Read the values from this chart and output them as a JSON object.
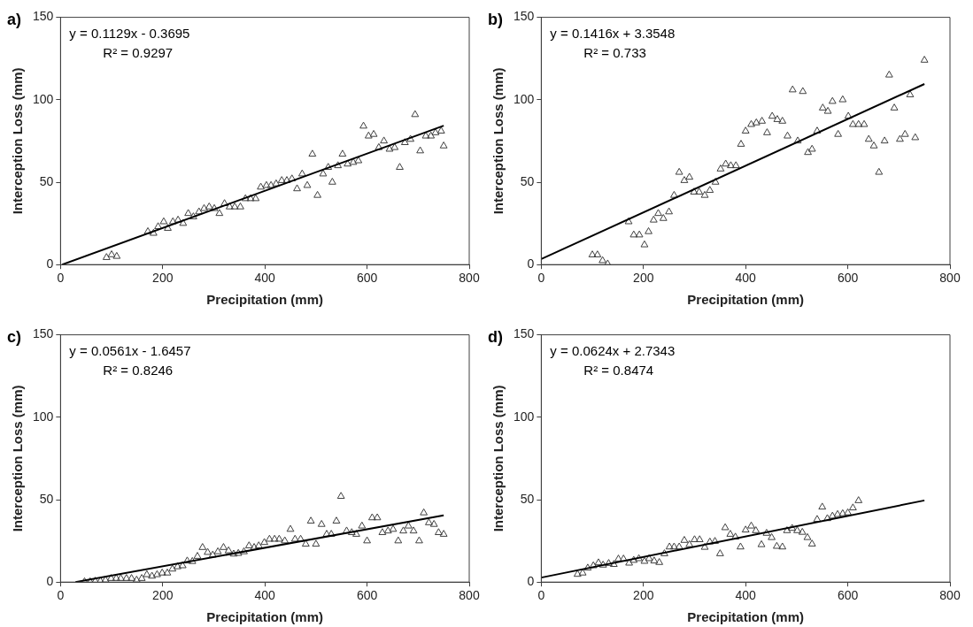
{
  "chart_data": [
    {
      "type": "scatter",
      "title": "a)",
      "xlabel": "Precipitation (mm)",
      "ylabel": "Interception Loss (mm)",
      "annotations": [
        "y = 0.1129x - 0.3695",
        "R² = 0.9297"
      ],
      "xlim": [
        0,
        800
      ],
      "xticks": [
        0,
        200,
        400,
        600,
        800
      ],
      "ylim": [
        0,
        150
      ],
      "yticks": [
        0,
        50,
        100,
        150
      ],
      "marker": "triangle",
      "legend": false,
      "series": [
        {
          "color": "#404040",
          "x": [
            90,
            100,
            110,
            171,
            182,
            191,
            202,
            210,
            220,
            230,
            240,
            250,
            260,
            271,
            281,
            291,
            301,
            311,
            321,
            331,
            341,
            352,
            362,
            372,
            382,
            392,
            403,
            412,
            422,
            433,
            443,
            453,
            463,
            473,
            483,
            493,
            503,
            514,
            524,
            532,
            543,
            552,
            562,
            573,
            583,
            593,
            603,
            613,
            623,
            633,
            644,
            654,
            664,
            674,
            685,
            694,
            704,
            715,
            725,
            734,
            745,
            750
          ],
          "values": [
            4.3,
            6,
            5,
            20,
            19,
            23,
            26,
            22,
            26,
            27,
            25,
            31,
            29,
            32,
            34,
            35,
            34,
            31,
            37,
            35,
            35,
            35,
            40,
            40,
            40,
            47,
            48,
            48,
            49,
            51,
            51,
            52,
            46,
            55,
            48,
            67,
            42,
            55,
            59,
            50,
            60,
            67,
            61,
            62,
            63,
            84,
            78,
            79,
            71,
            75,
            70,
            71,
            59,
            74,
            76,
            91,
            69,
            78,
            78,
            80,
            81,
            72
          ]
        },
        {
          "type": "line",
          "color": "#000000",
          "marker": "none",
          "x": [
            3.3,
            750
          ],
          "values": [
            0,
            84.3
          ]
        }
      ]
    },
    {
      "type": "scatter",
      "title": "b)",
      "xlabel": "Precipitation (mm)",
      "ylabel": "Interception Loss (mm)",
      "annotations": [
        "y = 0.1416x + 3.3548",
        "R² = 0.733"
      ],
      "xlim": [
        0,
        800
      ],
      "xticks": [
        0,
        200,
        400,
        600,
        800
      ],
      "ylim": [
        0,
        150
      ],
      "yticks": [
        0,
        50,
        100,
        150
      ],
      "marker": "triangle",
      "legend": false,
      "series": [
        {
          "color": "#404040",
          "x": [
            100,
            110,
            120,
            130,
            171,
            181,
            192,
            202,
            210,
            220,
            229,
            239,
            250,
            260,
            270,
            280,
            290,
            299,
            309,
            320,
            330,
            341,
            351,
            361,
            371,
            381,
            391,
            400,
            411,
            421,
            432,
            442,
            452,
            462,
            472,
            482,
            492,
            502,
            512,
            522,
            530,
            540,
            551,
            561,
            570,
            581,
            590,
            601,
            610,
            621,
            632,
            641,
            651,
            661,
            672,
            681,
            691,
            702,
            712,
            722,
            732,
            750
          ],
          "values": [
            5.9,
            5.9,
            2.4,
            0.4,
            26,
            18,
            18,
            12,
            20,
            27,
            31,
            28,
            32,
            42,
            56,
            51,
            53,
            44,
            44,
            42,
            45,
            50,
            58,
            61,
            60,
            60,
            73,
            81,
            85,
            86,
            87,
            80,
            90,
            88,
            87,
            78,
            106,
            75,
            105,
            68,
            70,
            81,
            95,
            93,
            99,
            79,
            100,
            90,
            85,
            85,
            85,
            76,
            72,
            56,
            75,
            115,
            95,
            76,
            79,
            103,
            77,
            124
          ]
        },
        {
          "type": "line",
          "color": "#000000",
          "marker": "none",
          "x": [
            0,
            750
          ],
          "values": [
            3.35,
            109.55
          ]
        }
      ]
    },
    {
      "type": "scatter",
      "title": "c)",
      "xlabel": "Precipitation (mm)",
      "ylabel": "Interception Loss (mm)",
      "annotations": [
        "y = 0.0561x - 1.6457",
        "R² = 0.8246"
      ],
      "xlim": [
        0,
        800
      ],
      "xticks": [
        0,
        200,
        400,
        600,
        800
      ],
      "ylim": [
        0,
        150
      ],
      "yticks": [
        0,
        50,
        100,
        150
      ],
      "marker": "triangle",
      "legend": false,
      "series": [
        {
          "color": "#404040",
          "x": [
            47,
            58,
            68,
            78,
            88,
            99,
            109,
            118,
            129,
            139,
            149,
            159,
            169,
            179,
            189,
            199,
            209,
            219,
            229,
            239,
            248,
            258,
            268,
            278,
            288,
            298,
            308,
            319,
            329,
            339,
            348,
            359,
            369,
            379,
            388,
            399,
            409,
            419,
            428,
            439,
            450,
            459,
            470,
            480,
            490,
            500,
            511,
            521,
            530,
            540,
            549,
            560,
            570,
            579,
            590,
            600,
            610,
            620,
            630,
            641,
            651,
            661,
            671,
            681,
            691,
            702,
            711,
            721,
            731,
            740,
            750
          ],
          "values": [
            0.2,
            0.2,
            0.6,
            0.6,
            1.2,
            2.2,
            2.2,
            2.2,
            2.2,
            2.2,
            1.2,
            2.2,
            4.5,
            3.6,
            4.5,
            5.5,
            5.5,
            7.9,
            9.3,
            9.9,
            12.8,
            12.5,
            15.6,
            21,
            18,
            16.4,
            18.4,
            21,
            19,
            17,
            17.4,
            18.4,
            22,
            21,
            22,
            24,
            26,
            26,
            26,
            25,
            32,
            26,
            26,
            23,
            37,
            23,
            35,
            29,
            29,
            37,
            52,
            31,
            30,
            29,
            34,
            25,
            39,
            39,
            30,
            31,
            32,
            25,
            31,
            34,
            31,
            25,
            42,
            36,
            35,
            30,
            29
          ]
        },
        {
          "type": "line",
          "color": "#000000",
          "marker": "none",
          "x": [
            29.3,
            750
          ],
          "values": [
            0,
            40.43
          ]
        }
      ]
    },
    {
      "type": "scatter",
      "title": "d)",
      "xlabel": "Precipitation (mm)",
      "ylabel": "Interception Loss (mm)",
      "annotations": [
        "y = 0.0624x + 2.7343",
        "R² = 0.8474"
      ],
      "xlim": [
        0,
        800
      ],
      "xticks": [
        0,
        200,
        400,
        600,
        800
      ],
      "ylim": [
        0,
        150
      ],
      "yticks": [
        0,
        50,
        100,
        150
      ],
      "marker": "triangle",
      "legend": false,
      "series": [
        {
          "color": "#404040",
          "x": [
            71,
            81,
            91,
            102,
            112,
            121,
            132,
            142,
            151,
            161,
            172,
            181,
            191,
            202,
            211,
            221,
            231,
            241,
            251,
            260,
            270,
            280,
            290,
            300,
            310,
            320,
            330,
            340,
            350,
            360,
            370,
            380,
            390,
            400,
            411,
            420,
            431,
            441,
            451,
            461,
            472,
            481,
            491,
            501,
            511,
            521,
            530,
            540,
            550,
            560,
            570,
            580,
            590,
            600,
            610,
            621
          ],
          "values": [
            4.7,
            5.5,
            8.5,
            9.9,
            11.7,
            10.3,
            11.3,
            10.7,
            14,
            14,
            11.5,
            13.2,
            14.2,
            12.6,
            14.2,
            12.8,
            11.9,
            17.2,
            21.3,
            21.3,
            21.3,
            25.3,
            22.7,
            25.7,
            25.7,
            21.1,
            24.3,
            24.7,
            17.2,
            33,
            29,
            27.3,
            21.3,
            31.6,
            34,
            31.2,
            22.7,
            29.6,
            27,
            21.7,
            21.3,
            31.2,
            32.6,
            31.2,
            30.2,
            27,
            23.1,
            38,
            45.5,
            38.5,
            40,
            41,
            41.5,
            42,
            45,
            49.4
          ]
        },
        {
          "type": "line",
          "color": "#000000",
          "marker": "none",
          "x": [
            0,
            750
          ],
          "values": [
            2.73,
            49.53
          ]
        }
      ]
    }
  ]
}
